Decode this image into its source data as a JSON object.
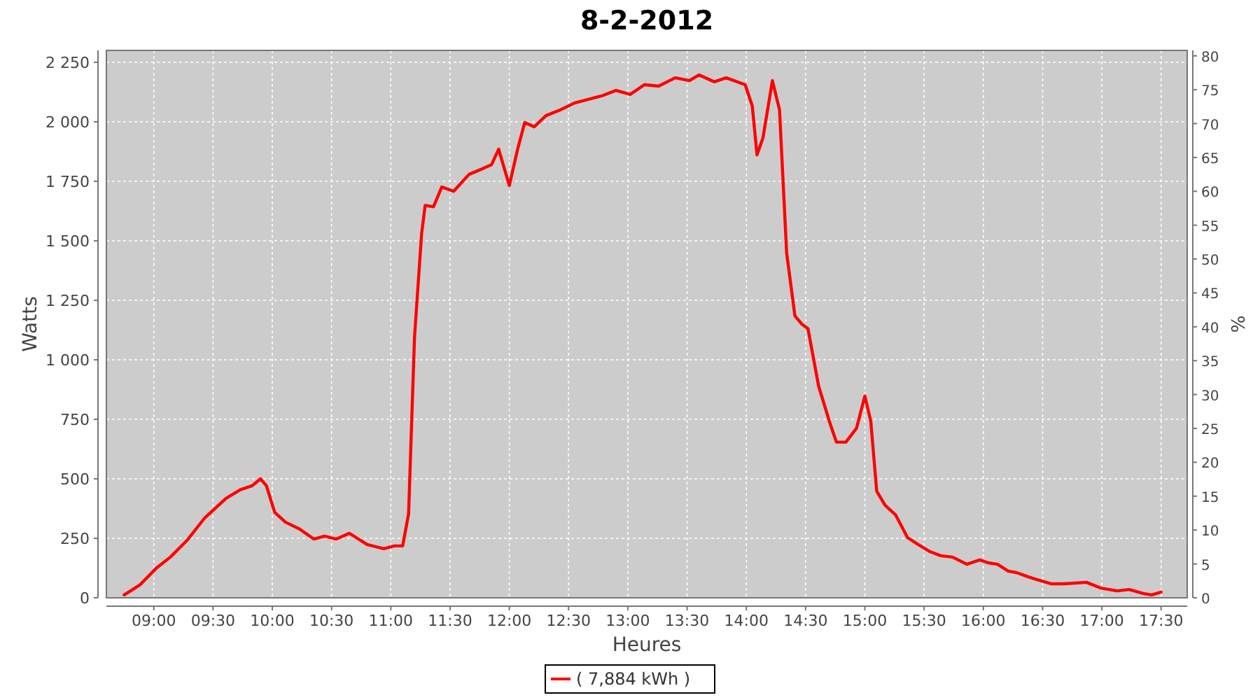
{
  "chart_data": {
    "type": "line",
    "title": "8-2-2012",
    "xlabel": "Heures",
    "ylabel": "Watts",
    "y2label": "%",
    "xlim": [
      8.6,
      17.72
    ],
    "xticks": [
      {
        "value": 9,
        "label": "09:00"
      },
      {
        "value": 9.5,
        "label": "09:30"
      },
      {
        "value": 10,
        "label": "10:00"
      },
      {
        "value": 10.5,
        "label": "10:30"
      },
      {
        "value": 11,
        "label": "11:00"
      },
      {
        "value": 11.5,
        "label": "11:30"
      },
      {
        "value": 12,
        "label": "12:00"
      },
      {
        "value": 12.5,
        "label": "12:30"
      },
      {
        "value": 13,
        "label": "13:00"
      },
      {
        "value": 13.5,
        "label": "13:30"
      },
      {
        "value": 14,
        "label": "14:00"
      },
      {
        "value": 14.5,
        "label": "14:30"
      },
      {
        "value": 15,
        "label": "15:00"
      },
      {
        "value": 15.5,
        "label": "15:30"
      },
      {
        "value": 16,
        "label": "16:00"
      },
      {
        "value": 16.5,
        "label": "16:30"
      },
      {
        "value": 17,
        "label": "17:00"
      },
      {
        "value": 17.5,
        "label": "17:30"
      }
    ],
    "ylim": [
      0,
      2300
    ],
    "yticks": [
      0,
      250,
      500,
      750,
      {
        "value": 1000,
        "label": "1 000"
      },
      {
        "value": 1250,
        "label": "1 250"
      },
      {
        "value": 1500,
        "label": "1 500"
      },
      {
        "value": 1750,
        "label": "1 750"
      },
      {
        "value": 2000,
        "label": "2 000"
      },
      {
        "value": 2250,
        "label": "2 250"
      }
    ],
    "y2lim": [
      0,
      80.8
    ],
    "y2ticks": [
      0,
      5,
      10,
      15,
      20,
      25,
      30,
      35,
      40,
      45,
      50,
      55,
      60,
      65,
      70,
      75,
      80
    ],
    "grid": true,
    "legend": "bottom",
    "series": [
      {
        "name": "( 7,884 kWh )",
        "color": "#ff0000",
        "x": [
          8.75,
          8.88,
          9.02,
          9.14,
          9.28,
          9.43,
          9.61,
          9.73,
          9.83,
          9.9,
          9.95,
          10.02,
          10.11,
          10.23,
          10.35,
          10.44,
          10.54,
          10.65,
          10.8,
          10.94,
          11.03,
          11.1,
          11.15,
          11.2,
          11.26,
          11.29,
          11.36,
          11.43,
          11.53,
          11.66,
          11.77,
          11.85,
          11.91,
          12,
          12.07,
          12.13,
          12.21,
          12.31,
          12.43,
          12.55,
          12.78,
          12.9,
          13.02,
          13.14,
          13.26,
          13.4,
          13.52,
          13.6,
          13.73,
          13.83,
          13.99,
          14.05,
          14.09,
          14.14,
          14.22,
          14.28,
          14.34,
          14.41,
          14.47,
          14.52,
          14.61,
          14.7,
          14.76,
          14.84,
          14.93,
          15,
          15.05,
          15.1,
          15.17,
          15.26,
          15.36,
          15.45,
          15.55,
          15.64,
          15.74,
          15.86,
          15.97,
          16.04,
          16.12,
          16.21,
          16.28,
          16.38,
          16.45,
          16.57,
          16.68,
          16.87,
          16.99,
          17.13,
          17.23,
          17.35,
          17.42,
          17.5
        ],
        "values": [
          12,
          53,
          124,
          171,
          241,
          336,
          418,
          454,
          471,
          500,
          471,
          359,
          318,
          289,
          247,
          259,
          247,
          271,
          224,
          206,
          218,
          218,
          353,
          1096,
          1531,
          1649,
          1643,
          1726,
          1708,
          1779,
          1802,
          1820,
          1885,
          1732,
          1885,
          1997,
          1979,
          2026,
          2050,
          2079,
          2109,
          2132,
          2115,
          2156,
          2150,
          2185,
          2173,
          2197,
          2168,
          2185,
          2156,
          2067,
          1861,
          1932,
          2173,
          2050,
          1449,
          1184,
          1149,
          1131,
          889,
          742,
          654,
          654,
          713,
          848,
          742,
          448,
          389,
          348,
          253,
          224,
          194,
          177,
          171,
          141,
          159,
          147,
          141,
          112,
          106,
          88,
          77,
          59,
          59,
          65,
          41,
          29,
          35,
          18,
          12,
          24
        ]
      }
    ]
  }
}
